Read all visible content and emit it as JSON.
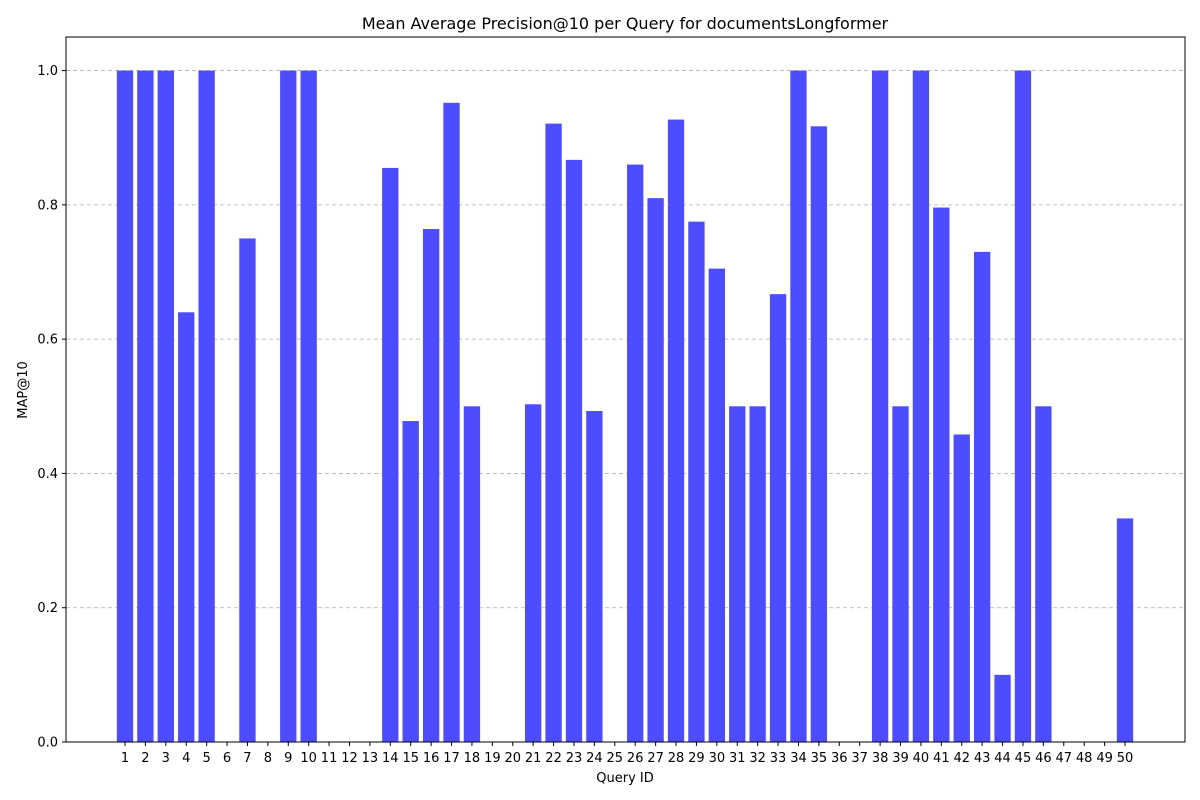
{
  "chart_data": {
    "type": "bar",
    "title": "Mean Average Precision@10 per Query for documentsLongformer",
    "xlabel": "Query ID",
    "ylabel": "MAP@10",
    "categories": [
      "1",
      "2",
      "3",
      "4",
      "5",
      "6",
      "7",
      "8",
      "9",
      "10",
      "11",
      "12",
      "13",
      "14",
      "15",
      "16",
      "17",
      "18",
      "19",
      "20",
      "21",
      "22",
      "23",
      "24",
      "25",
      "26",
      "27",
      "28",
      "29",
      "30",
      "31",
      "32",
      "33",
      "34",
      "35",
      "36",
      "37",
      "38",
      "39",
      "40",
      "41",
      "42",
      "43",
      "44",
      "45",
      "46",
      "47",
      "48",
      "49",
      "50"
    ],
    "values": [
      1.0,
      1.0,
      1.0,
      0.64,
      1.0,
      0.0,
      0.75,
      0.0,
      1.0,
      1.0,
      0.0,
      0.0,
      0.0,
      0.855,
      0.478,
      0.764,
      0.952,
      0.5,
      0.0,
      0.0,
      0.503,
      0.921,
      0.867,
      0.493,
      0.0,
      0.86,
      0.81,
      0.927,
      0.775,
      0.705,
      0.5,
      0.5,
      0.667,
      1.0,
      0.917,
      0.0,
      0.0,
      1.0,
      0.5,
      1.0,
      0.796,
      0.458,
      0.73,
      0.1,
      1.0,
      0.5,
      0.0,
      0.0,
      0.0,
      0.333
    ],
    "ylim": [
      0,
      1.05
    ],
    "yticks": [
      "0.0",
      "0.2",
      "0.4",
      "0.6",
      "0.8",
      "1.0"
    ],
    "grid": "horizontal dashed",
    "bar_color": "#4d4dff"
  }
}
